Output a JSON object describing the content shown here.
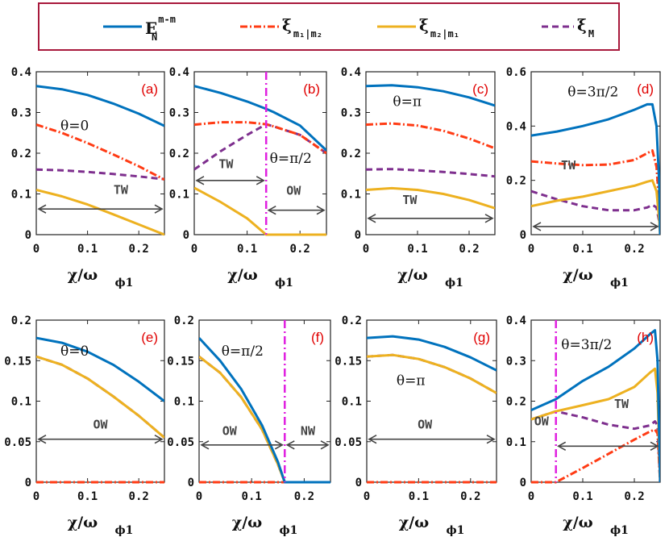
{
  "legend": {
    "items": [
      {
        "key": "E",
        "main": "E",
        "sup": "m-m",
        "sub": "N",
        "color": "#0072bd",
        "dash": ""
      },
      {
        "key": "x12",
        "main": "ξ",
        "sub": "m₁|m₂",
        "color": "#ff3b14",
        "dash": "9,3,2,3"
      },
      {
        "key": "x21",
        "main": "ξ",
        "sub": "m₂|m₁",
        "color": "#edb120",
        "dash": ""
      },
      {
        "key": "xM",
        "main": "ξ",
        "sub": "M",
        "color": "#7e2f8e",
        "dash": "8,5"
      }
    ]
  },
  "xlabel_main": "χ/ω",
  "xlabel_sub": "ϕ1",
  "chart_data": [
    {
      "type": "line",
      "panel": "(a)",
      "theta": "θ=0",
      "xlim": [
        0,
        0.25
      ],
      "ylim": [
        0,
        0.4
      ],
      "xticks": [
        "0",
        "0.1",
        "0.2"
      ],
      "yticks": [
        "0",
        "0.1",
        "0.2",
        "0.3",
        "0.4"
      ],
      "ytick_values": [
        0,
        0.1,
        0.2,
        0.3,
        0.4
      ],
      "x": [
        0,
        0.05,
        0.1,
        0.15,
        0.2,
        0.25
      ],
      "series": [
        {
          "key": "E",
          "values": [
            0.365,
            0.357,
            0.343,
            0.322,
            0.297,
            0.267
          ]
        },
        {
          "key": "x12",
          "values": [
            0.27,
            0.25,
            0.225,
            0.197,
            0.168,
            0.135
          ]
        },
        {
          "key": "x21",
          "values": [
            0.11,
            0.094,
            0.074,
            0.05,
            0.025,
            0.0
          ]
        },
        {
          "key": "xM",
          "values": [
            0.16,
            0.158,
            0.154,
            0.149,
            0.143,
            0.136
          ]
        }
      ],
      "region": [
        {
          "text": "TW",
          "x1": 0,
          "x2": 0.25,
          "y": 0.063,
          "tx": 0.165,
          "ty": 0.1
        }
      ]
    },
    {
      "type": "line",
      "panel": "(b)",
      "theta": "θ=π/2",
      "xlim": [
        0,
        0.25
      ],
      "ylim": [
        0,
        0.4
      ],
      "xticks": [
        "0",
        "0.1",
        "0.2"
      ],
      "yticks": [
        "0",
        "0.1",
        "0.2",
        "0.3",
        "0.4"
      ],
      "ytick_values": [
        0,
        0.1,
        0.2,
        0.3,
        0.4
      ],
      "vline": 0.136,
      "x": [
        0,
        0.05,
        0.1,
        0.136,
        0.15,
        0.2,
        0.25
      ],
      "series": [
        {
          "key": "E",
          "values": [
            0.365,
            0.348,
            0.327,
            0.309,
            0.301,
            0.268,
            0.207
          ]
        },
        {
          "key": "x12",
          "values": [
            0.27,
            0.276,
            0.276,
            0.271,
            0.266,
            0.245,
            0.2
          ]
        },
        {
          "key": "x21",
          "values": [
            0.115,
            0.08,
            0.04,
            0.0,
            0.0,
            0.0,
            0.0
          ]
        },
        {
          "key": "xM",
          "values": [
            0.16,
            0.205,
            0.245,
            0.271,
            0.266,
            0.245,
            0.2
          ]
        }
      ],
      "region": [
        {
          "text": "TW",
          "x1": 0,
          "x2": 0.136,
          "y": 0.133,
          "tx": 0.06,
          "ty": 0.163
        },
        {
          "text": "OW",
          "x1": 0.136,
          "x2": 0.25,
          "y": 0.06,
          "tx": 0.188,
          "ty": 0.098
        }
      ]
    },
    {
      "type": "line",
      "panel": "(c)",
      "theta": "θ=π",
      "xlim": [
        0,
        0.25
      ],
      "ylim": [
        0,
        0.4
      ],
      "xticks": [
        "0",
        "0.1",
        "0.2"
      ],
      "yticks": [
        "0",
        "0.1",
        "0.2",
        "0.3",
        "0.4"
      ],
      "ytick_values": [
        0,
        0.1,
        0.2,
        0.3,
        0.4
      ],
      "x": [
        0,
        0.05,
        0.1,
        0.15,
        0.2,
        0.25
      ],
      "series": [
        {
          "key": "E",
          "values": [
            0.365,
            0.367,
            0.362,
            0.352,
            0.337,
            0.317
          ]
        },
        {
          "key": "x12",
          "values": [
            0.27,
            0.273,
            0.268,
            0.255,
            0.236,
            0.212
          ]
        },
        {
          "key": "x21",
          "values": [
            0.11,
            0.114,
            0.11,
            0.1,
            0.085,
            0.065
          ]
        },
        {
          "key": "xM",
          "values": [
            0.16,
            0.161,
            0.158,
            0.154,
            0.149,
            0.143
          ]
        }
      ],
      "region": [
        {
          "text": "TW",
          "x1": 0,
          "x2": 0.25,
          "y": 0.04,
          "tx": 0.085,
          "ty": 0.075
        }
      ]
    },
    {
      "type": "line",
      "panel": "(d)",
      "theta": "θ=3π/2",
      "xlim": [
        0,
        0.25
      ],
      "ylim": [
        0,
        0.6
      ],
      "xticks": [
        "0",
        "0.1",
        "0.2"
      ],
      "yticks": [
        "0",
        "0.2",
        "0.4",
        "0.6"
      ],
      "ytick_values": [
        0,
        0.2,
        0.4,
        0.6
      ],
      "x": [
        0,
        0.05,
        0.1,
        0.15,
        0.2,
        0.225,
        0.235,
        0.243,
        0.248,
        0.25
      ],
      "series": [
        {
          "key": "E",
          "values": [
            0.365,
            0.38,
            0.4,
            0.425,
            0.46,
            0.48,
            0.48,
            0.4,
            0.2,
            0.0
          ]
        },
        {
          "key": "x12",
          "values": [
            0.27,
            0.262,
            0.256,
            0.258,
            0.275,
            0.3,
            0.31,
            0.25,
            0.12,
            0.0
          ]
        },
        {
          "key": "x21",
          "values": [
            0.105,
            0.125,
            0.14,
            0.16,
            0.18,
            0.195,
            0.2,
            0.16,
            0.06,
            0.0
          ]
        },
        {
          "key": "xM",
          "values": [
            0.16,
            0.13,
            0.105,
            0.09,
            0.09,
            0.1,
            0.11,
            0.1,
            0.05,
            0.0
          ]
        }
      ],
      "region": [
        {
          "text": "TW",
          "x1": 0,
          "x2": 0.25,
          "y": 0.03,
          "tx": 0.072,
          "ty": 0.24
        }
      ]
    },
    {
      "type": "line",
      "panel": "(e)",
      "theta": "θ=0",
      "xlim": [
        0,
        0.25
      ],
      "ylim": [
        0,
        0.2
      ],
      "xticks": [
        "0",
        "0.1",
        "0.2"
      ],
      "yticks": [
        "0",
        "0.05",
        "0.1",
        "0.15",
        "0.2"
      ],
      "ytick_values": [
        0,
        0.05,
        0.1,
        0.15,
        0.2
      ],
      "x": [
        0,
        0.05,
        0.1,
        0.15,
        0.2,
        0.25
      ],
      "series": [
        {
          "key": "E",
          "values": [
            0.178,
            0.172,
            0.161,
            0.145,
            0.124,
            0.1
          ]
        },
        {
          "key": "x12",
          "values": [
            0,
            0,
            0,
            0,
            0,
            0
          ]
        },
        {
          "key": "x21",
          "values": [
            0.155,
            0.145,
            0.128,
            0.106,
            0.082,
            0.055
          ]
        },
        {
          "key": "xM",
          "values": [
            0.155,
            0.145,
            0.128,
            0.106,
            0.082,
            0.055
          ]
        }
      ],
      "region": [
        {
          "text": "OW",
          "x1": 0,
          "x2": 0.25,
          "y": 0.053,
          "tx": 0.125,
          "ty": 0.066
        }
      ]
    },
    {
      "type": "line",
      "panel": "(f)",
      "theta": "θ=π/2",
      "xlim": [
        0,
        0.25
      ],
      "ylim": [
        0,
        0.2
      ],
      "xticks": [
        "0",
        "0.1",
        "0.2"
      ],
      "yticks": [
        "0",
        "0.05",
        "0.1",
        "0.15",
        "0.2"
      ],
      "ytick_values": [
        0,
        0.05,
        0.1,
        0.15,
        0.2
      ],
      "vline": 0.163,
      "x": [
        0,
        0.04,
        0.08,
        0.12,
        0.15,
        0.163,
        0.2,
        0.25
      ],
      "series": [
        {
          "key": "E",
          "values": [
            0.178,
            0.15,
            0.115,
            0.07,
            0.025,
            0.0,
            0.0,
            0.0
          ]
        },
        {
          "key": "x12",
          "values": [
            0,
            0,
            0,
            0,
            0,
            0,
            0,
            0
          ]
        },
        {
          "key": "x21",
          "values": [
            0.155,
            0.135,
            0.105,
            0.065,
            0.022,
            0.0,
            0.0,
            0.0
          ]
        },
        {
          "key": "xM",
          "values": [
            0.155,
            0.135,
            0.105,
            0.065,
            0.022,
            0.0,
            0.0,
            0.0
          ]
        }
      ],
      "region": [
        {
          "text": "OW",
          "x1": 0,
          "x2": 0.163,
          "y": 0.046,
          "tx": 0.058,
          "ty": 0.058
        },
        {
          "text": "NW",
          "x1": 0.163,
          "x2": 0.25,
          "y": 0.046,
          "tx": 0.207,
          "ty": 0.058
        }
      ]
    },
    {
      "type": "line",
      "panel": "(g)",
      "theta": "θ=π",
      "xlim": [
        0,
        0.25
      ],
      "ylim": [
        0,
        0.2
      ],
      "xticks": [
        "0",
        "0.1",
        "0.2"
      ],
      "yticks": [
        "0",
        "0.05",
        "0.1",
        "0.15",
        "0.2"
      ],
      "ytick_values": [
        0,
        0.05,
        0.1,
        0.15,
        0.2
      ],
      "x": [
        0,
        0.05,
        0.1,
        0.15,
        0.2,
        0.25
      ],
      "series": [
        {
          "key": "E",
          "values": [
            0.178,
            0.18,
            0.176,
            0.167,
            0.154,
            0.138
          ]
        },
        {
          "key": "x12",
          "values": [
            0,
            0,
            0,
            0,
            0,
            0
          ]
        },
        {
          "key": "x21",
          "values": [
            0.155,
            0.157,
            0.152,
            0.142,
            0.128,
            0.11
          ]
        },
        {
          "key": "xM",
          "values": [
            0.155,
            0.157,
            0.152,
            0.142,
            0.128,
            0.11
          ]
        }
      ],
      "region": [
        {
          "text": "OW",
          "x1": 0,
          "x2": 0.25,
          "y": 0.053,
          "tx": 0.112,
          "ty": 0.066
        }
      ]
    },
    {
      "type": "line",
      "panel": "(h)",
      "theta": "θ=3π/2",
      "xlim": [
        0,
        0.25
      ],
      "ylim": [
        0,
        0.4
      ],
      "xticks": [
        "0",
        "0.1",
        "0.2"
      ],
      "yticks": [
        "0",
        "0.1",
        "0.2",
        "0.3",
        "0.4"
      ],
      "ytick_values": [
        0,
        0.1,
        0.2,
        0.3,
        0.4
      ],
      "vline": 0.048,
      "x": [
        0,
        0.048,
        0.1,
        0.15,
        0.2,
        0.23,
        0.24,
        0.245,
        0.25
      ],
      "series": [
        {
          "key": "E",
          "values": [
            0.178,
            0.205,
            0.25,
            0.285,
            0.33,
            0.365,
            0.375,
            0.3,
            0.0
          ]
        },
        {
          "key": "x12",
          "values": [
            0,
            0,
            0.035,
            0.07,
            0.105,
            0.125,
            0.13,
            0.12,
            0.0
          ]
        },
        {
          "key": "x21",
          "values": [
            0.155,
            0.175,
            0.19,
            0.205,
            0.235,
            0.27,
            0.28,
            0.22,
            0.0
          ]
        },
        {
          "key": "xM",
          "values": [
            0.155,
            0.175,
            0.16,
            0.142,
            0.132,
            0.14,
            0.15,
            0.14,
            0.0
          ]
        }
      ],
      "region": [
        {
          "text": "OW",
          "x1": null,
          "x2": null,
          "y": null,
          "tx": 0.02,
          "ty": 0.14
        },
        {
          "text": "TW",
          "x1": 0.048,
          "x2": 0.25,
          "y": 0.089,
          "tx": 0.175,
          "ty": 0.183
        }
      ]
    }
  ]
}
